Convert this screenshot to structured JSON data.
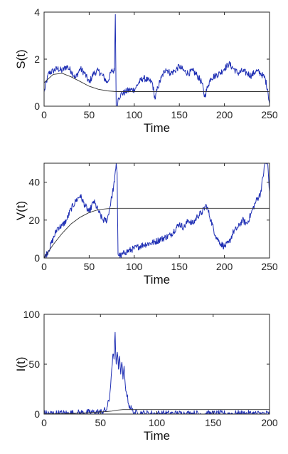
{
  "chart_data": [
    {
      "type": "line",
      "xlabel": "Time",
      "ylabel": "S(t)",
      "xlim": [
        0,
        250
      ],
      "ylim": [
        0,
        4
      ],
      "xticks": [
        0,
        50,
        100,
        150,
        200,
        250
      ],
      "yticks": [
        0,
        2,
        4
      ],
      "grid": false,
      "series": [
        {
          "color": "#1f2fb4",
          "style": "stochastic",
          "x": [
            0,
            5,
            10,
            15,
            20,
            25,
            30,
            35,
            40,
            45,
            50,
            55,
            60,
            65,
            70,
            75,
            78,
            79,
            80,
            81,
            82,
            85,
            90,
            95,
            100,
            105,
            110,
            115,
            120,
            123,
            126,
            130,
            135,
            140,
            145,
            150,
            155,
            160,
            165,
            170,
            175,
            178,
            182,
            185,
            190,
            195,
            200,
            205,
            210,
            215,
            220,
            225,
            230,
            235,
            240,
            245,
            248,
            250
          ],
          "y": [
            0.6,
            1.4,
            1.5,
            1.6,
            1.5,
            1.7,
            1.5,
            1.2,
            1.6,
            1.4,
            1.0,
            1.4,
            1.5,
            1.3,
            1.0,
            1.5,
            1.5,
            3.9,
            0.0,
            0.0,
            0.3,
            0.5,
            0.6,
            0.7,
            0.7,
            1.0,
            1.2,
            1.1,
            1.0,
            0.3,
            0.8,
            1.2,
            1.6,
            1.4,
            1.5,
            1.7,
            1.5,
            1.4,
            1.5,
            1.3,
            1.0,
            0.4,
            0.9,
            1.2,
            1.3,
            1.4,
            1.6,
            1.8,
            1.6,
            1.4,
            1.5,
            1.4,
            1.3,
            1.5,
            1.4,
            1.2,
            0.7,
            0.1
          ]
        },
        {
          "color": "#333333",
          "style": "smooth",
          "x": [
            0,
            10,
            20,
            30,
            40,
            50,
            60,
            70,
            80,
            100,
            150,
            200,
            250
          ],
          "y": [
            1.0,
            1.35,
            1.4,
            1.25,
            1.05,
            0.85,
            0.72,
            0.65,
            0.62,
            0.62,
            0.62,
            0.62,
            0.62
          ]
        }
      ]
    },
    {
      "type": "line",
      "xlabel": "Time",
      "ylabel": "V(t)",
      "xlim": [
        0,
        250
      ],
      "ylim": [
        0,
        50
      ],
      "xticks": [
        0,
        50,
        100,
        150,
        200,
        250
      ],
      "yticks": [
        0,
        20,
        40
      ],
      "grid": false,
      "series": [
        {
          "color": "#1f2fb4",
          "style": "stochastic",
          "x": [
            0,
            5,
            10,
            15,
            20,
            25,
            30,
            35,
            40,
            45,
            50,
            55,
            60,
            65,
            70,
            75,
            78,
            80,
            81,
            82,
            85,
            90,
            100,
            110,
            120,
            130,
            140,
            150,
            155,
            160,
            165,
            170,
            175,
            180,
            185,
            190,
            195,
            200,
            205,
            210,
            215,
            220,
            225,
            230,
            235,
            240,
            245,
            248,
            250
          ],
          "y": [
            0,
            4,
            10,
            16,
            17,
            20,
            26,
            30,
            33,
            28,
            24,
            30,
            25,
            20,
            20,
            32,
            40,
            50,
            45,
            2,
            1,
            3,
            5,
            7,
            8,
            10,
            12,
            18,
            16,
            20,
            18,
            22,
            24,
            28,
            20,
            12,
            8,
            6,
            8,
            14,
            16,
            20,
            18,
            24,
            30,
            34,
            50,
            50,
            35
          ]
        },
        {
          "color": "#333333",
          "style": "smooth",
          "x": [
            0,
            10,
            20,
            30,
            40,
            50,
            60,
            70,
            80,
            100,
            150,
            200,
            250
          ],
          "y": [
            0,
            7,
            13,
            18,
            21.5,
            24,
            25.5,
            26,
            26.2,
            26.2,
            26.2,
            26.2,
            26.2
          ]
        }
      ]
    },
    {
      "type": "line",
      "xlabel": "Time",
      "ylabel": "I(t)",
      "xlim": [
        0,
        200
      ],
      "ylim": [
        0,
        100
      ],
      "xticks": [
        0,
        50,
        100,
        150,
        200
      ],
      "yticks": [
        0,
        50,
        100
      ],
      "grid": false,
      "series": [
        {
          "color": "#1f2fb4",
          "style": "stochastic",
          "x": [
            0,
            10,
            20,
            30,
            40,
            50,
            55,
            58,
            60,
            61,
            62,
            63,
            64,
            65,
            66,
            67,
            68,
            69,
            70,
            71,
            72,
            73,
            75,
            78,
            80,
            90,
            100,
            150,
            200
          ],
          "y": [
            0.5,
            0.6,
            0.8,
            1,
            1.5,
            2,
            4,
            15,
            45,
            60,
            55,
            82,
            50,
            62,
            45,
            58,
            40,
            52,
            35,
            48,
            30,
            22,
            10,
            4,
            1.5,
            0.5,
            0.3,
            0.2,
            0.2
          ]
        },
        {
          "color": "#333333",
          "style": "smooth",
          "x": [
            0,
            20,
            40,
            55,
            60,
            65,
            70,
            75,
            80,
            100,
            150,
            200
          ],
          "y": [
            0.2,
            0.5,
            1.5,
            2.5,
            3,
            4,
            4.5,
            4.5,
            4.5,
            4.5,
            4.5,
            4.5
          ]
        }
      ]
    }
  ]
}
